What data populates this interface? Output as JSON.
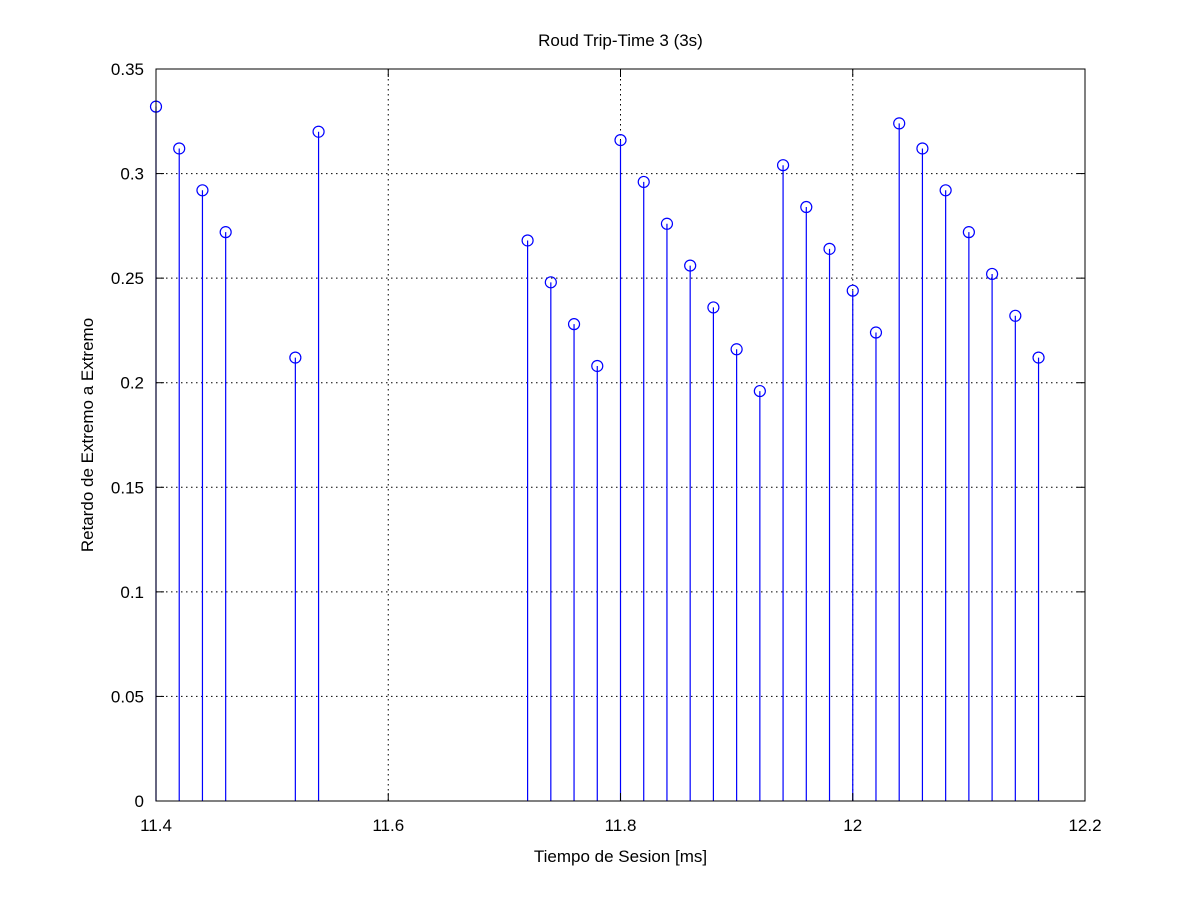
{
  "chart_data": {
    "type": "stem",
    "title": "Roud Trip-Time 3 (3s)",
    "xlabel": "Tiempo de Sesion [ms]",
    "ylabel": "Retardo de Extremo a Extremo",
    "xlim": [
      11.4,
      12.2
    ],
    "ylim": [
      0,
      0.35
    ],
    "xticks": [
      11.4,
      11.6,
      11.8,
      12,
      12.2
    ],
    "xtick_labels": [
      "11.4",
      "11.6",
      "11.8",
      "12",
      "12.2"
    ],
    "yticks": [
      0,
      0.05,
      0.1,
      0.15,
      0.2,
      0.25,
      0.3,
      0.35
    ],
    "ytick_labels": [
      "0",
      "0.05",
      "0.1",
      "0.15",
      "0.2",
      "0.25",
      "0.3",
      "0.35"
    ],
    "grid": true,
    "series": [
      {
        "color": "#0000ff",
        "marker": "circle",
        "x": [
          11.4,
          11.42,
          11.44,
          11.46,
          11.52,
          11.54,
          11.72,
          11.74,
          11.76,
          11.78,
          11.8,
          11.82,
          11.84,
          11.86,
          11.88,
          11.9,
          11.92,
          11.94,
          11.96,
          11.98,
          12.0,
          12.02,
          12.04,
          12.06,
          12.08,
          12.1,
          12.12,
          12.14,
          12.16
        ],
        "y": [
          0.332,
          0.312,
          0.292,
          0.272,
          0.212,
          0.32,
          0.268,
          0.248,
          0.228,
          0.208,
          0.316,
          0.296,
          0.276,
          0.256,
          0.236,
          0.216,
          0.196,
          0.304,
          0.284,
          0.264,
          0.244,
          0.224,
          0.324,
          0.312,
          0.292,
          0.272,
          0.252,
          0.232,
          0.212
        ]
      }
    ]
  }
}
